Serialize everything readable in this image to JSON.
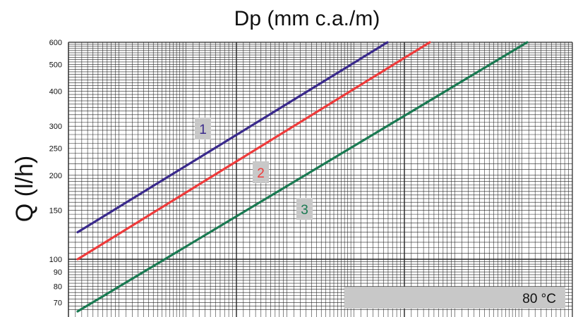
{
  "chart_data": {
    "type": "line",
    "title": "Dp (mm c.a./m)",
    "xlabel": "",
    "ylabel": "Q (l/h)",
    "y_scale": "log",
    "ylim": [
      65,
      600
    ],
    "y_ticks": [
      70,
      80,
      90,
      100,
      150,
      200,
      250,
      300,
      400,
      500,
      600
    ],
    "x_scale": "log",
    "grid": true,
    "annotation": "80 °C",
    "series": [
      {
        "name": "1",
        "color": "#3a2a8c",
        "values": [
          125,
          600
        ]
      },
      {
        "name": "2",
        "color": "#ee3b3b",
        "values": [
          100,
          600
        ]
      },
      {
        "name": "3",
        "color": "#1a7a52",
        "values": [
          65,
          600
        ]
      }
    ]
  },
  "colors": {
    "label_box": "#c8c8c8",
    "grid": "#222222",
    "annotation_box": "#c8c8c8"
  }
}
